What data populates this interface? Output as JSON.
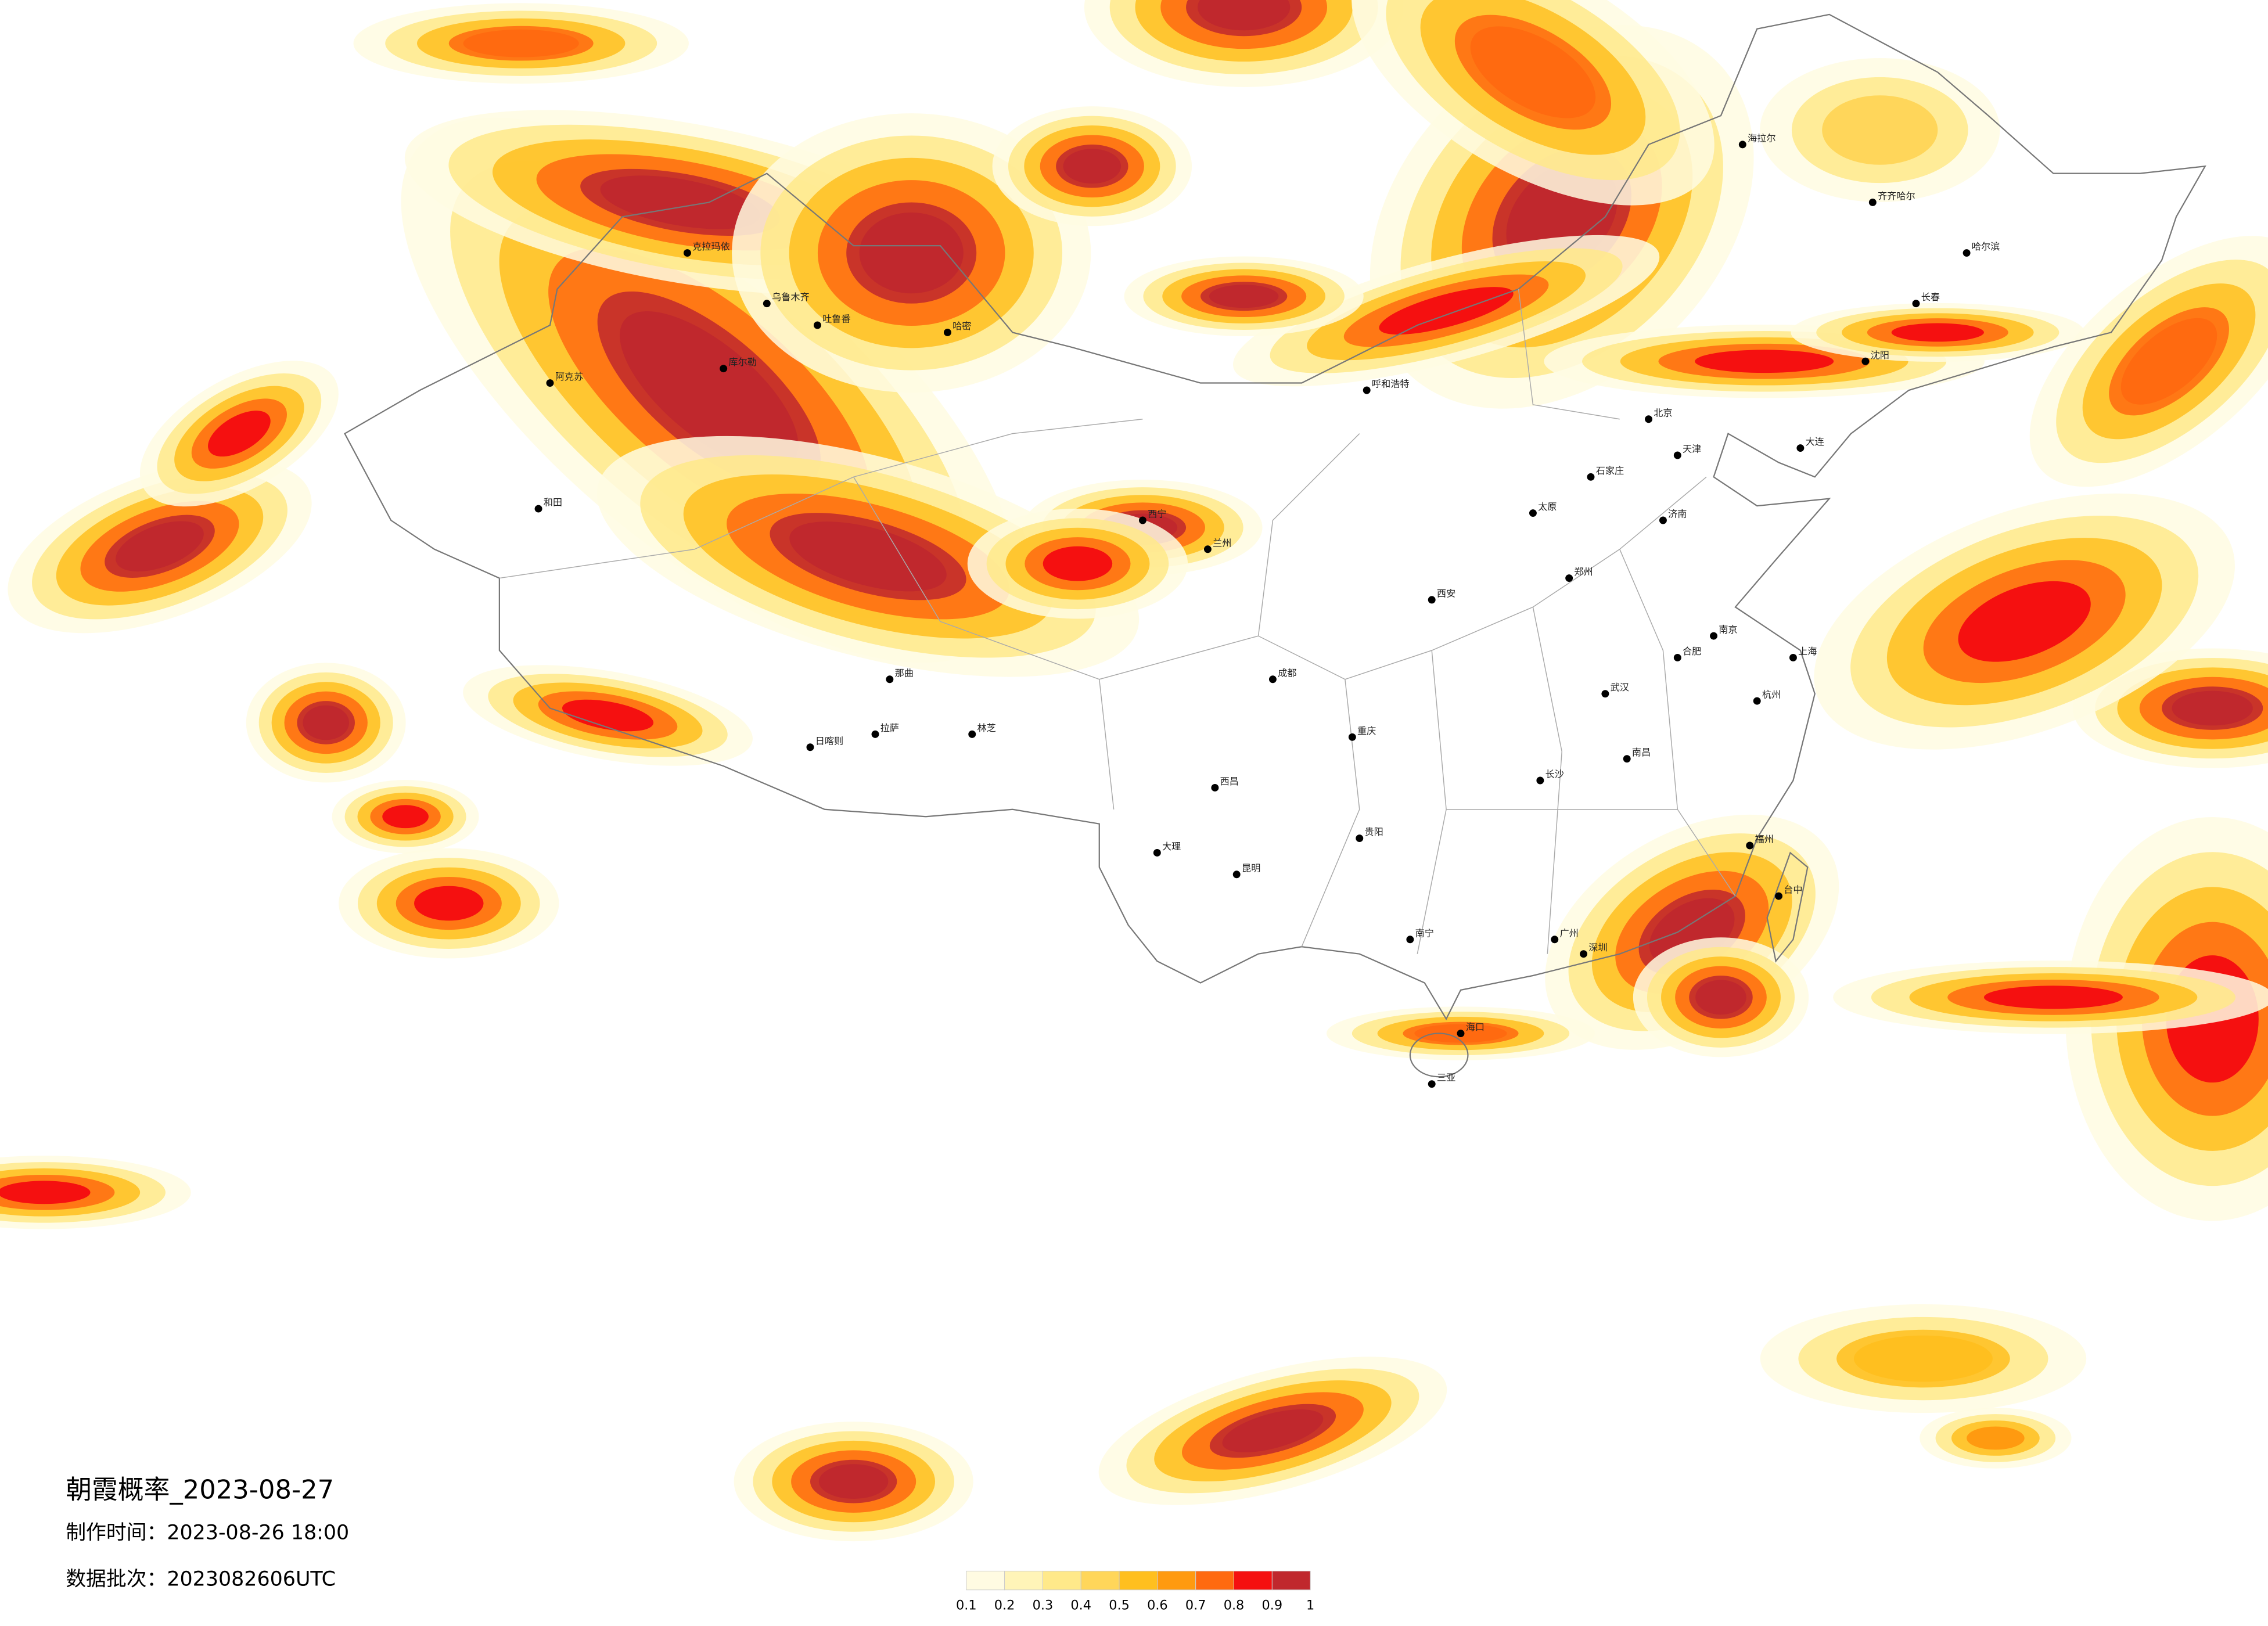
{
  "header": {
    "title": "朝霞概率_2023-08-27",
    "made_time": "制作时间：2023-08-26 18:00",
    "batch": "数据批次：2023082606UTC"
  },
  "legend": {
    "ticks": [
      0.1,
      0.2,
      0.3,
      0.4,
      0.5,
      0.6,
      0.7,
      0.8,
      0.9,
      1
    ],
    "colors": [
      "#fffbe2",
      "#fff4b8",
      "#ffe98a",
      "#ffd65a",
      "#ffbf1f",
      "#ff9a10",
      "#ff6a10",
      "#f51010",
      "#c0282d"
    ]
  },
  "cities": [
    "阿克苏",
    "和田",
    "库尔勒",
    "乌鲁木齐",
    "克拉玛依",
    "吐鲁番",
    "哈密",
    "日喀则",
    "拉萨",
    "林芝",
    "那曲",
    "西宁",
    "兰州",
    "呼和浩特",
    "北京",
    "天津",
    "石家庄",
    "太原",
    "济南",
    "西安",
    "郑州",
    "武汉",
    "南京",
    "上海",
    "杭州",
    "合肥",
    "南昌",
    "长沙",
    "福州",
    "广州",
    "深圳",
    "南宁",
    "海口",
    "三亚",
    "贵阳",
    "昆明",
    "成都",
    "重庆",
    "哈尔滨",
    "长春",
    "沈阳",
    "大连",
    "海拉尔",
    "齐齐哈尔",
    "台中",
    "西昌",
    "大理"
  ]
}
